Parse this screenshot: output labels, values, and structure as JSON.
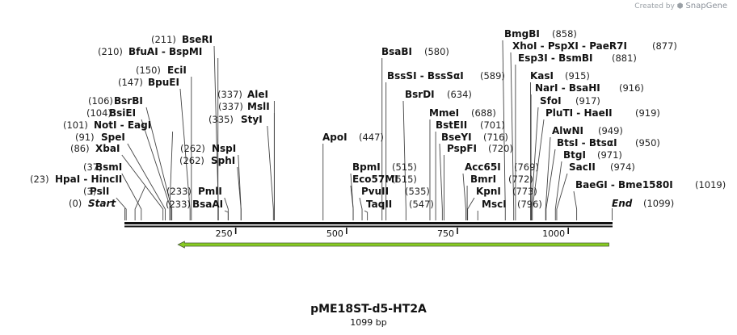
{
  "credit": {
    "text": "Created by",
    "brand": "SnapGene"
  },
  "map": {
    "name": "pME18ST-d5-HT2A",
    "length_label": "1099 bp",
    "length": 1099,
    "ticks": [
      "250",
      "500",
      "750",
      "1000"
    ],
    "tick_values": [
      250,
      500,
      750,
      1000
    ],
    "start_label": "Start",
    "start_pos": "(0)",
    "end_label": "End",
    "end_pos": "(1099)",
    "feature_color": "#88cc22",
    "feature": {
      "from": 120,
      "to": 1099,
      "direction": "reverse"
    }
  },
  "sites": [
    {
      "text": "PslI",
      "pos": "(3)",
      "bp": 3
    },
    {
      "text": "HpaI  -  HincII",
      "pos": "(23)",
      "bp": 23
    },
    {
      "text": "BsmI",
      "pos": "(37)",
      "bp": 37
    },
    {
      "text": "XbaI",
      "pos": "(86)",
      "bp": 86
    },
    {
      "text": "SpeI",
      "pos": "(91)",
      "bp": 91
    },
    {
      "text": "NotI  -  EagI",
      "pos": "(101)",
      "bp": 101
    },
    {
      "text": "BsiEI",
      "pos": "(104)",
      "bp": 104
    },
    {
      "text": "BsrBI",
      "pos": "(106)",
      "bp": 106
    },
    {
      "text": "BpuEI",
      "pos": "(147)",
      "bp": 147
    },
    {
      "text": "EciI",
      "pos": "(150)",
      "bp": 150
    },
    {
      "text": "BfuAI  -  BspMI",
      "pos": "(210)",
      "bp": 210
    },
    {
      "text": "BseRI",
      "pos": "(211)",
      "bp": 211
    },
    {
      "text": "BsaAI",
      "pos": "(233)",
      "bp": 233
    },
    {
      "text": "PmlI",
      "pos": "(233)",
      "bp": 233
    },
    {
      "text": "SphI",
      "pos": "(262)",
      "bp": 262
    },
    {
      "text": "NspI",
      "pos": "(262)",
      "bp": 262
    },
    {
      "text": "StyI",
      "pos": "(335)",
      "bp": 335
    },
    {
      "text": "MslI",
      "pos": "(337)",
      "bp": 337
    },
    {
      "text": "AleI",
      "pos": "(337)",
      "bp": 337
    },
    {
      "text": "ApoI",
      "pos": "(447)",
      "bp": 447
    },
    {
      "text": "BpmI",
      "pos": "(515)",
      "bp": 515
    },
    {
      "text": "Eco57MI",
      "pos": "(515)",
      "bp": 515
    },
    {
      "text": "PvuII",
      "pos": "(535)",
      "bp": 535
    },
    {
      "text": "TaqII",
      "pos": "(547)",
      "bp": 547
    },
    {
      "text": "BsaBI",
      "pos": "(580)",
      "bp": 580
    },
    {
      "text": "BssSI  -  BssSαI",
      "pos": "(589)",
      "bp": 589
    },
    {
      "text": "BsrDI",
      "pos": "(634)",
      "bp": 634
    },
    {
      "text": "MmeI",
      "pos": "(688)",
      "bp": 688
    },
    {
      "text": "BstEII",
      "pos": "(701)",
      "bp": 701
    },
    {
      "text": "BseYI",
      "pos": "(716)",
      "bp": 716
    },
    {
      "text": "PspFI",
      "pos": "(720)",
      "bp": 720
    },
    {
      "text": "Acc65I",
      "pos": "(769)",
      "bp": 769
    },
    {
      "text": "BmrI",
      "pos": "(772)",
      "bp": 772
    },
    {
      "text": "KpnI",
      "pos": "(773)",
      "bp": 773
    },
    {
      "text": "MscI",
      "pos": "(796)",
      "bp": 796
    },
    {
      "text": "BmgBI",
      "pos": "(858)",
      "bp": 858
    },
    {
      "text": "XhoI  -  PspXI  -  PaeR7I",
      "pos": "(877)",
      "bp": 877
    },
    {
      "text": "Esp3I  -  BsmBI",
      "pos": "(881)",
      "bp": 881
    },
    {
      "text": "KasI",
      "pos": "(915)",
      "bp": 915
    },
    {
      "text": "NarI  -  BsaHI",
      "pos": "(916)",
      "bp": 916
    },
    {
      "text": "SfoI",
      "pos": "(917)",
      "bp": 917
    },
    {
      "text": "PluTI  -  HaeII",
      "pos": "(919)",
      "bp": 919
    },
    {
      "text": "AlwNI",
      "pos": "(949)",
      "bp": 949
    },
    {
      "text": "BtsI  -  BtsαI",
      "pos": "(950)",
      "bp": 950
    },
    {
      "text": "BtgI",
      "pos": "(971)",
      "bp": 971
    },
    {
      "text": "SacII",
      "pos": "(974)",
      "bp": 974
    },
    {
      "text": "BaeGI  -  Bme1580I",
      "pos": "(1019)",
      "bp": 1019
    }
  ]
}
